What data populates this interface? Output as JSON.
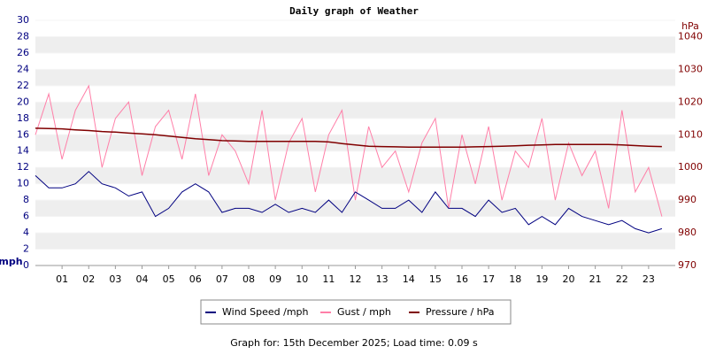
{
  "chart_data": {
    "type": "line",
    "title": "Daily graph of Weather",
    "y_label": "mph",
    "y2_label": "hPa",
    "x": [
      0,
      0.5,
      1,
      1.5,
      2,
      2.5,
      3,
      3.5,
      4,
      4.5,
      5,
      5.5,
      6,
      6.5,
      7,
      7.5,
      8,
      8.5,
      9,
      9.5,
      10,
      10.5,
      11,
      11.5,
      12,
      12.5,
      13,
      13.5,
      14,
      14.5,
      15,
      15.5,
      16,
      16.5,
      17,
      17.5,
      18,
      18.5,
      19,
      19.5,
      20,
      20.5,
      21,
      21.5,
      22,
      22.5,
      23,
      23.5
    ],
    "xlim": [
      0,
      24
    ],
    "xticks": [
      {
        "value": 1,
        "label": "01"
      },
      {
        "value": 2,
        "label": "02"
      },
      {
        "value": 3,
        "label": "03"
      },
      {
        "value": 4,
        "label": "04"
      },
      {
        "value": 5,
        "label": "05"
      },
      {
        "value": 6,
        "label": "06"
      },
      {
        "value": 7,
        "label": "07"
      },
      {
        "value": 8,
        "label": "08"
      },
      {
        "value": 9,
        "label": "09"
      },
      {
        "value": 10,
        "label": "10"
      },
      {
        "value": 11,
        "label": "11"
      },
      {
        "value": 12,
        "label": "12"
      },
      {
        "value": 13,
        "label": "13"
      },
      {
        "value": 14,
        "label": "14"
      },
      {
        "value": 15,
        "label": "15"
      },
      {
        "value": 16,
        "label": "16"
      },
      {
        "value": 17,
        "label": "17"
      },
      {
        "value": 18,
        "label": "18"
      },
      {
        "value": 19,
        "label": "19"
      },
      {
        "value": 20,
        "label": "20"
      },
      {
        "value": 21,
        "label": "21"
      },
      {
        "value": 22,
        "label": "22"
      },
      {
        "value": 23,
        "label": "23"
      }
    ],
    "ylim": [
      0,
      30
    ],
    "yticks": [
      0,
      2,
      4,
      6,
      8,
      10,
      12,
      14,
      16,
      18,
      20,
      22,
      24,
      26,
      28,
      30
    ],
    "y2lim": [
      970,
      1045
    ],
    "y2ticks": [
      970,
      980,
      990,
      1000,
      1010,
      1020,
      1030,
      1040
    ],
    "series": [
      {
        "name": "Wind Speed /mph",
        "color": "#000080",
        "values": [
          11,
          9.5,
          9.5,
          10,
          11.5,
          10,
          9.5,
          8.5,
          9,
          6,
          7,
          9,
          10,
          9,
          6.5,
          7,
          7,
          6.5,
          7.5,
          6.5,
          7,
          6.5,
          8,
          6.5,
          9,
          8,
          7,
          7,
          8,
          6.5,
          9,
          7,
          7,
          6,
          8,
          6.5,
          7,
          5,
          6,
          5,
          7,
          6,
          5.5,
          5,
          5.5,
          4.5,
          4,
          4.5
        ]
      },
      {
        "name": "Gust / mph",
        "color": "#ff7fa8",
        "values": [
          16,
          21,
          13,
          19,
          22,
          12,
          18,
          20,
          11,
          17,
          19,
          13,
          21,
          11,
          16,
          14,
          10,
          19,
          8,
          15,
          18,
          9,
          16,
          19,
          8,
          17,
          12,
          14,
          9,
          15,
          18,
          7,
          16,
          10,
          17,
          8,
          14,
          12,
          18,
          8,
          15,
          11,
          14,
          7,
          19,
          9,
          12,
          6
        ]
      },
      {
        "name": "Pressure / hPa",
        "color": "#800000",
        "axis": "y2",
        "values": [
          1012,
          1011.9,
          1011.8,
          1011.5,
          1011.3,
          1011,
          1010.8,
          1010.5,
          1010.3,
          1010,
          1009.6,
          1009.2,
          1008.8,
          1008.5,
          1008.2,
          1008.1,
          1008,
          1008,
          1008,
          1008,
          1008,
          1008,
          1007.8,
          1007.3,
          1006.9,
          1006.5,
          1006.4,
          1006.3,
          1006.2,
          1006.2,
          1006.2,
          1006.2,
          1006.2,
          1006.3,
          1006.4,
          1006.5,
          1006.6,
          1006.8,
          1006.9,
          1007,
          1007,
          1007,
          1007,
          1007,
          1006.9,
          1006.7,
          1006.5,
          1006.4
        ]
      }
    ],
    "footer": "Graph for: 15th December 2025; Load time: 0.09 s"
  }
}
